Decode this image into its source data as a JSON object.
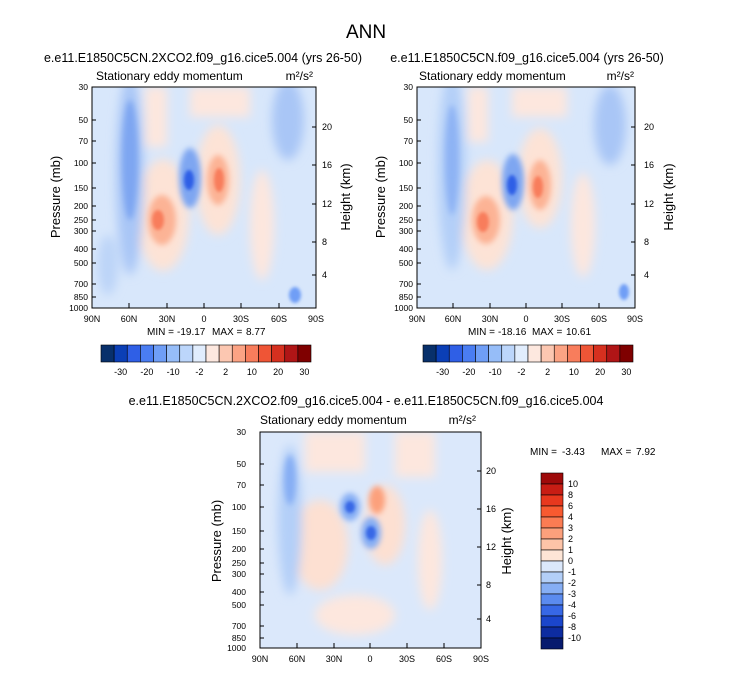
{
  "figure": {
    "title": "ANN",
    "diff_title": "e.e11.E1850C5CN.2XCO2.f09_g16.cice5.004 - e.e11.E1850C5CN.f09_g16.cice5.004",
    "top_colorbar_labels": [
      "-30",
      "-20",
      "-10",
      "-2",
      "2",
      "10",
      "20",
      "30"
    ],
    "top_colorbar_colors": [
      "#08306b",
      "#0b3fb6",
      "#2f5fe6",
      "#4a7df2",
      "#6f9ef6",
      "#96bdf8",
      "#bcd6fb",
      "#e1edfd",
      "#fde8df",
      "#fcc7b1",
      "#fca384",
      "#f87d5c",
      "#ef5536",
      "#d6301f",
      "#b01516",
      "#7f0000"
    ],
    "diff_colorbar_labels": [
      "10",
      "8",
      "6",
      "4",
      "3",
      "2",
      "1",
      "0",
      "-1",
      "-2",
      "-3",
      "-4",
      "-6",
      "-8",
      "-10"
    ],
    "diff_colorbar_colors": [
      "#9e0a0a",
      "#c81d14",
      "#e8381e",
      "#f85a30",
      "#fb7c53",
      "#fca07c",
      "#fdc4a8",
      "#fde5d6",
      "#dbe8fb",
      "#b3cff8",
      "#86aef4",
      "#5b8bef",
      "#3768e6",
      "#1b46cc",
      "#0d2ca0",
      "#071b6e"
    ]
  },
  "chart_data": [
    {
      "type": "heatmap",
      "panel": "top-left",
      "title": "e.e11.E1850C5CN.2XCO2.f09_g16.cice5.004 (yrs 26-50)",
      "subtitle": "Stationary eddy momentum",
      "units": "m²/s²",
      "ylabel": "Pressure (mb)",
      "ylabel_right": "Height (km)",
      "x_ticks": [
        "90N",
        "60N",
        "30N",
        "0",
        "30S",
        "60S",
        "90S"
      ],
      "y_ticks": [
        "30",
        "50",
        "70",
        "100",
        "150",
        "200",
        "250",
        "300",
        "400",
        "500",
        "700",
        "850",
        "1000"
      ],
      "height_ticks": [
        "20",
        "16",
        "12",
        "8",
        "4"
      ],
      "min": "-19.17",
      "max": "8.77",
      "features": [
        {
          "lat": 62,
          "p": 150,
          "v": -8
        },
        {
          "lat": 15,
          "p": 150,
          "v": -19
        },
        {
          "lat": -5,
          "p": 150,
          "v": 8
        },
        {
          "lat": 28,
          "p": 250,
          "v": 5
        },
        {
          "lat": -45,
          "p": 50,
          "v": -4
        }
      ]
    },
    {
      "type": "heatmap",
      "panel": "top-right",
      "title": "e.e11.E1850C5CN.f09_g16.cice5.004 (yrs 26-50)",
      "subtitle": "Stationary eddy momentum",
      "units": "m²/s²",
      "ylabel": "Pressure (mb)",
      "ylabel_right": "Height (km)",
      "x_ticks": [
        "90N",
        "60N",
        "30N",
        "0",
        "30S",
        "60S",
        "90S"
      ],
      "y_ticks": [
        "30",
        "50",
        "70",
        "100",
        "150",
        "200",
        "250",
        "300",
        "400",
        "500",
        "700",
        "850",
        "1000"
      ],
      "height_ticks": [
        "20",
        "16",
        "12",
        "8",
        "4"
      ],
      "min": "-18.16",
      "max": "10.61",
      "features": [
        {
          "lat": 62,
          "p": 150,
          "v": -6
        },
        {
          "lat": 10,
          "p": 150,
          "v": -18
        },
        {
          "lat": -8,
          "p": 150,
          "v": 10
        },
        {
          "lat": 30,
          "p": 250,
          "v": 4
        },
        {
          "lat": -45,
          "p": 50,
          "v": -4
        }
      ]
    },
    {
      "type": "heatmap",
      "panel": "bottom-difference",
      "subtitle": "Stationary eddy momentum",
      "units": "m²/s²",
      "ylabel": "Pressure (mb)",
      "ylabel_right": "Height (km)",
      "x_ticks": [
        "90N",
        "60N",
        "30N",
        "0",
        "30S",
        "60S",
        "90S"
      ],
      "y_ticks": [
        "30",
        "50",
        "70",
        "100",
        "150",
        "200",
        "250",
        "300",
        "400",
        "500",
        "700",
        "850",
        "1000"
      ],
      "height_ticks": [
        "20",
        "16",
        "12",
        "8",
        "4"
      ],
      "min": "-3.43",
      "max": "7.92",
      "features": [
        {
          "lat": 65,
          "p": 70,
          "v": -2
        },
        {
          "lat": 15,
          "p": 100,
          "v": -3
        },
        {
          "lat": -2,
          "p": 150,
          "v": -3
        },
        {
          "lat": -8,
          "p": 100,
          "v": 2
        },
        {
          "lat": 30,
          "p": 150,
          "v": 1
        }
      ]
    }
  ]
}
